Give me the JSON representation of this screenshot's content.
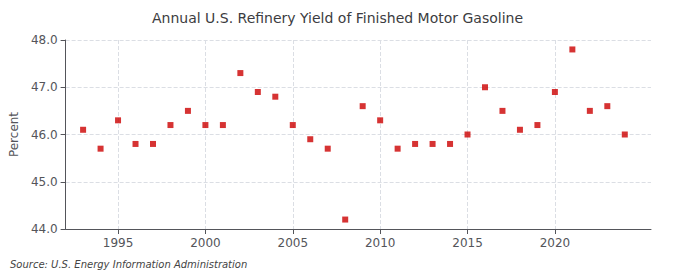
{
  "chart_data": {
    "type": "scatter",
    "title": "Annual U.S. Refinery Yield of Finished Motor Gasoline",
    "ylabel": "Percent",
    "source": "Source: U.S. Energy Information Administration",
    "x": [
      1993,
      1994,
      1995,
      1996,
      1997,
      1998,
      1999,
      2000,
      2001,
      2002,
      2003,
      2004,
      2005,
      2006,
      2007,
      2008,
      2009,
      2010,
      2011,
      2012,
      2013,
      2014,
      2015,
      2016,
      2017,
      2018,
      2019,
      2020,
      2021,
      2022,
      2023,
      2024
    ],
    "values": [
      46.1,
      45.7,
      46.3,
      45.8,
      45.8,
      46.2,
      46.5,
      46.2,
      46.2,
      47.3,
      46.9,
      46.8,
      46.2,
      45.9,
      45.7,
      44.2,
      46.6,
      46.3,
      45.7,
      45.8,
      45.8,
      45.8,
      46.0,
      47.0,
      46.5,
      46.1,
      46.2,
      46.9,
      47.8,
      46.5,
      46.6,
      46.0
    ],
    "color": "#cc0000",
    "marker": "square",
    "xlim": [
      1992.0,
      2025.5
    ],
    "xticks": [
      1995,
      2000,
      2005,
      2010,
      2015,
      2020
    ],
    "ylim": [
      44.0,
      48.0
    ],
    "yticks": [
      {
        "value": 44.0,
        "label": "44.0"
      },
      {
        "value": 45.0,
        "label": "45.0"
      },
      {
        "value": 46.0,
        "label": "46.0"
      },
      {
        "value": 47.0,
        "label": "47.0"
      },
      {
        "value": 48.0,
        "label": "48.0"
      }
    ],
    "grid": true
  }
}
